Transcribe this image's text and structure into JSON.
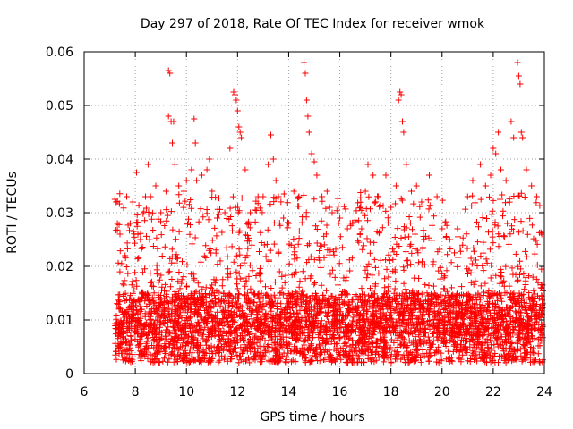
{
  "chart_data": {
    "type": "scatter",
    "title": "Day 297 of 2018, Rate Of TEC Index for receiver wmok",
    "xlabel": "GPS time / hours",
    "ylabel": "ROTI / TECUs",
    "xlim": [
      6,
      24
    ],
    "ylim": [
      0,
      0.06
    ],
    "x_ticks": [
      6,
      8,
      10,
      12,
      14,
      16,
      18,
      20,
      22,
      24
    ],
    "x_tick_labels": [
      "6",
      "8",
      "10",
      "12",
      "14",
      "16",
      "18",
      "20",
      "22",
      "24"
    ],
    "y_ticks": [
      0,
      0.01,
      0.02,
      0.03,
      0.04,
      0.05,
      0.06
    ],
    "y_tick_labels": [
      "0",
      "0.01",
      "0.02",
      "0.03",
      "0.04",
      "0.05",
      "0.06"
    ],
    "grid": true,
    "marker": "+",
    "color": "#ff0000",
    "series": [
      {
        "name": "ROTI",
        "points": [
          [
            7.2,
            0.0325
          ],
          [
            7.25,
            0.032
          ],
          [
            7.3,
            0.028
          ],
          [
            7.4,
            0.026
          ],
          [
            7.6,
            0.022
          ],
          [
            7.8,
            0.028
          ],
          [
            7.9,
            0.032
          ],
          [
            8.05,
            0.0375
          ],
          [
            8.2,
            0.025
          ],
          [
            8.4,
            0.033
          ],
          [
            8.5,
            0.039
          ],
          [
            8.6,
            0.033
          ],
          [
            8.8,
            0.035
          ],
          [
            9.0,
            0.03
          ],
          [
            9.2,
            0.034
          ],
          [
            9.3,
            0.0565
          ],
          [
            9.35,
            0.056
          ],
          [
            9.3,
            0.048
          ],
          [
            9.4,
            0.047
          ],
          [
            9.45,
            0.043
          ],
          [
            9.5,
            0.047
          ],
          [
            9.55,
            0.039
          ],
          [
            9.7,
            0.035
          ],
          [
            9.9,
            0.034
          ],
          [
            10.0,
            0.036
          ],
          [
            10.2,
            0.038
          ],
          [
            10.3,
            0.0475
          ],
          [
            10.35,
            0.043
          ],
          [
            10.4,
            0.036
          ],
          [
            10.6,
            0.037
          ],
          [
            10.8,
            0.038
          ],
          [
            10.9,
            0.04
          ],
          [
            11.0,
            0.034
          ],
          [
            11.2,
            0.029
          ],
          [
            11.5,
            0.03
          ],
          [
            11.7,
            0.042
          ],
          [
            11.85,
            0.0525
          ],
          [
            11.9,
            0.052
          ],
          [
            11.95,
            0.051
          ],
          [
            12.0,
            0.049
          ],
          [
            12.05,
            0.046
          ],
          [
            12.1,
            0.045
          ],
          [
            12.15,
            0.044
          ],
          [
            12.3,
            0.038
          ],
          [
            12.5,
            0.03
          ],
          [
            12.8,
            0.033
          ],
          [
            13.0,
            0.033
          ],
          [
            13.2,
            0.039
          ],
          [
            13.3,
            0.0445
          ],
          [
            13.4,
            0.04
          ],
          [
            13.5,
            0.036
          ],
          [
            13.6,
            0.033
          ],
          [
            13.8,
            0.029
          ],
          [
            14.0,
            0.028
          ],
          [
            14.2,
            0.034
          ],
          [
            14.4,
            0.033
          ],
          [
            14.6,
            0.058
          ],
          [
            14.65,
            0.056
          ],
          [
            14.7,
            0.051
          ],
          [
            14.75,
            0.048
          ],
          [
            14.8,
            0.045
          ],
          [
            14.9,
            0.041
          ],
          [
            15.0,
            0.0395
          ],
          [
            15.1,
            0.037
          ],
          [
            15.3,
            0.033
          ],
          [
            15.5,
            0.034
          ],
          [
            15.7,
            0.03
          ],
          [
            16.0,
            0.029
          ],
          [
            16.3,
            0.027
          ],
          [
            16.5,
            0.028
          ],
          [
            16.8,
            0.031
          ],
          [
            17.0,
            0.034
          ],
          [
            17.1,
            0.039
          ],
          [
            17.3,
            0.037
          ],
          [
            17.5,
            0.033
          ],
          [
            17.8,
            0.037
          ],
          [
            18.0,
            0.031
          ],
          [
            18.2,
            0.035
          ],
          [
            18.3,
            0.051
          ],
          [
            18.35,
            0.0525
          ],
          [
            18.4,
            0.052
          ],
          [
            18.45,
            0.047
          ],
          [
            18.5,
            0.045
          ],
          [
            18.6,
            0.039
          ],
          [
            18.8,
            0.034
          ],
          [
            19.0,
            0.035
          ],
          [
            19.2,
            0.032
          ],
          [
            19.5,
            0.037
          ],
          [
            19.8,
            0.033
          ],
          [
            20.0,
            0.027
          ],
          [
            20.3,
            0.025
          ],
          [
            20.6,
            0.027
          ],
          [
            21.0,
            0.033
          ],
          [
            21.2,
            0.036
          ],
          [
            21.5,
            0.039
          ],
          [
            21.7,
            0.035
          ],
          [
            21.9,
            0.037
          ],
          [
            22.0,
            0.042
          ],
          [
            22.1,
            0.041
          ],
          [
            22.2,
            0.045
          ],
          [
            22.3,
            0.038
          ],
          [
            22.5,
            0.036
          ],
          [
            22.7,
            0.047
          ],
          [
            22.8,
            0.044
          ],
          [
            22.95,
            0.058
          ],
          [
            23.0,
            0.0555
          ],
          [
            23.05,
            0.054
          ],
          [
            23.1,
            0.045
          ],
          [
            23.15,
            0.044
          ],
          [
            23.3,
            0.038
          ],
          [
            23.5,
            0.035
          ],
          [
            23.7,
            0.033
          ],
          [
            23.9,
            0.026
          ]
        ],
        "density_envelope": {
          "x_start": 7.2,
          "x_end": 23.95,
          "baseline_min": 0.002,
          "baseline_max": 0.015,
          "upper_typical": 0.028
        }
      }
    ]
  }
}
